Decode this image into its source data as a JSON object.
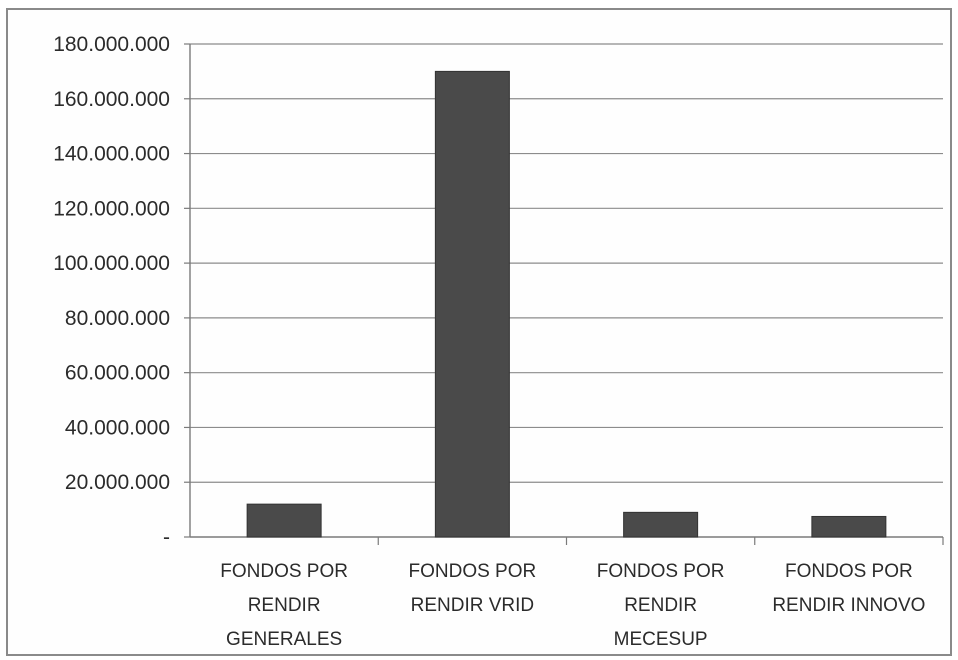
{
  "chart_data": {
    "type": "bar",
    "title": "",
    "xlabel": "",
    "ylabel": "",
    "categories": [
      "FONDOS POR RENDIR GENERALES",
      "FONDOS POR RENDIR VRID",
      "FONDOS POR RENDIR MECESUP",
      "FONDOS POR RENDIR INNOVO"
    ],
    "category_lines": [
      [
        "FONDOS POR",
        "RENDIR",
        "GENERALES"
      ],
      [
        "FONDOS POR",
        "RENDIR VRID"
      ],
      [
        "FONDOS POR",
        "RENDIR",
        "MECESUP"
      ],
      [
        "FONDOS POR",
        "RENDIR INNOVO"
      ]
    ],
    "values": [
      12000000,
      170000000,
      9000000,
      7500000
    ],
    "ylim": [
      0,
      180000000
    ],
    "yticks": [
      0,
      20000000,
      40000000,
      60000000,
      80000000,
      100000000,
      120000000,
      140000000,
      160000000,
      180000000
    ],
    "ytick_labels": [
      "-",
      "20.000.000",
      "40.000.000",
      "60.000.000",
      "80.000.000",
      "100.000.000",
      "120.000.000",
      "140.000.000",
      "160.000.000",
      "180.000.000"
    ],
    "grid": true,
    "legend": "none",
    "bar_color": "#4a4a4a",
    "grid_color": "#8c8c8c"
  }
}
